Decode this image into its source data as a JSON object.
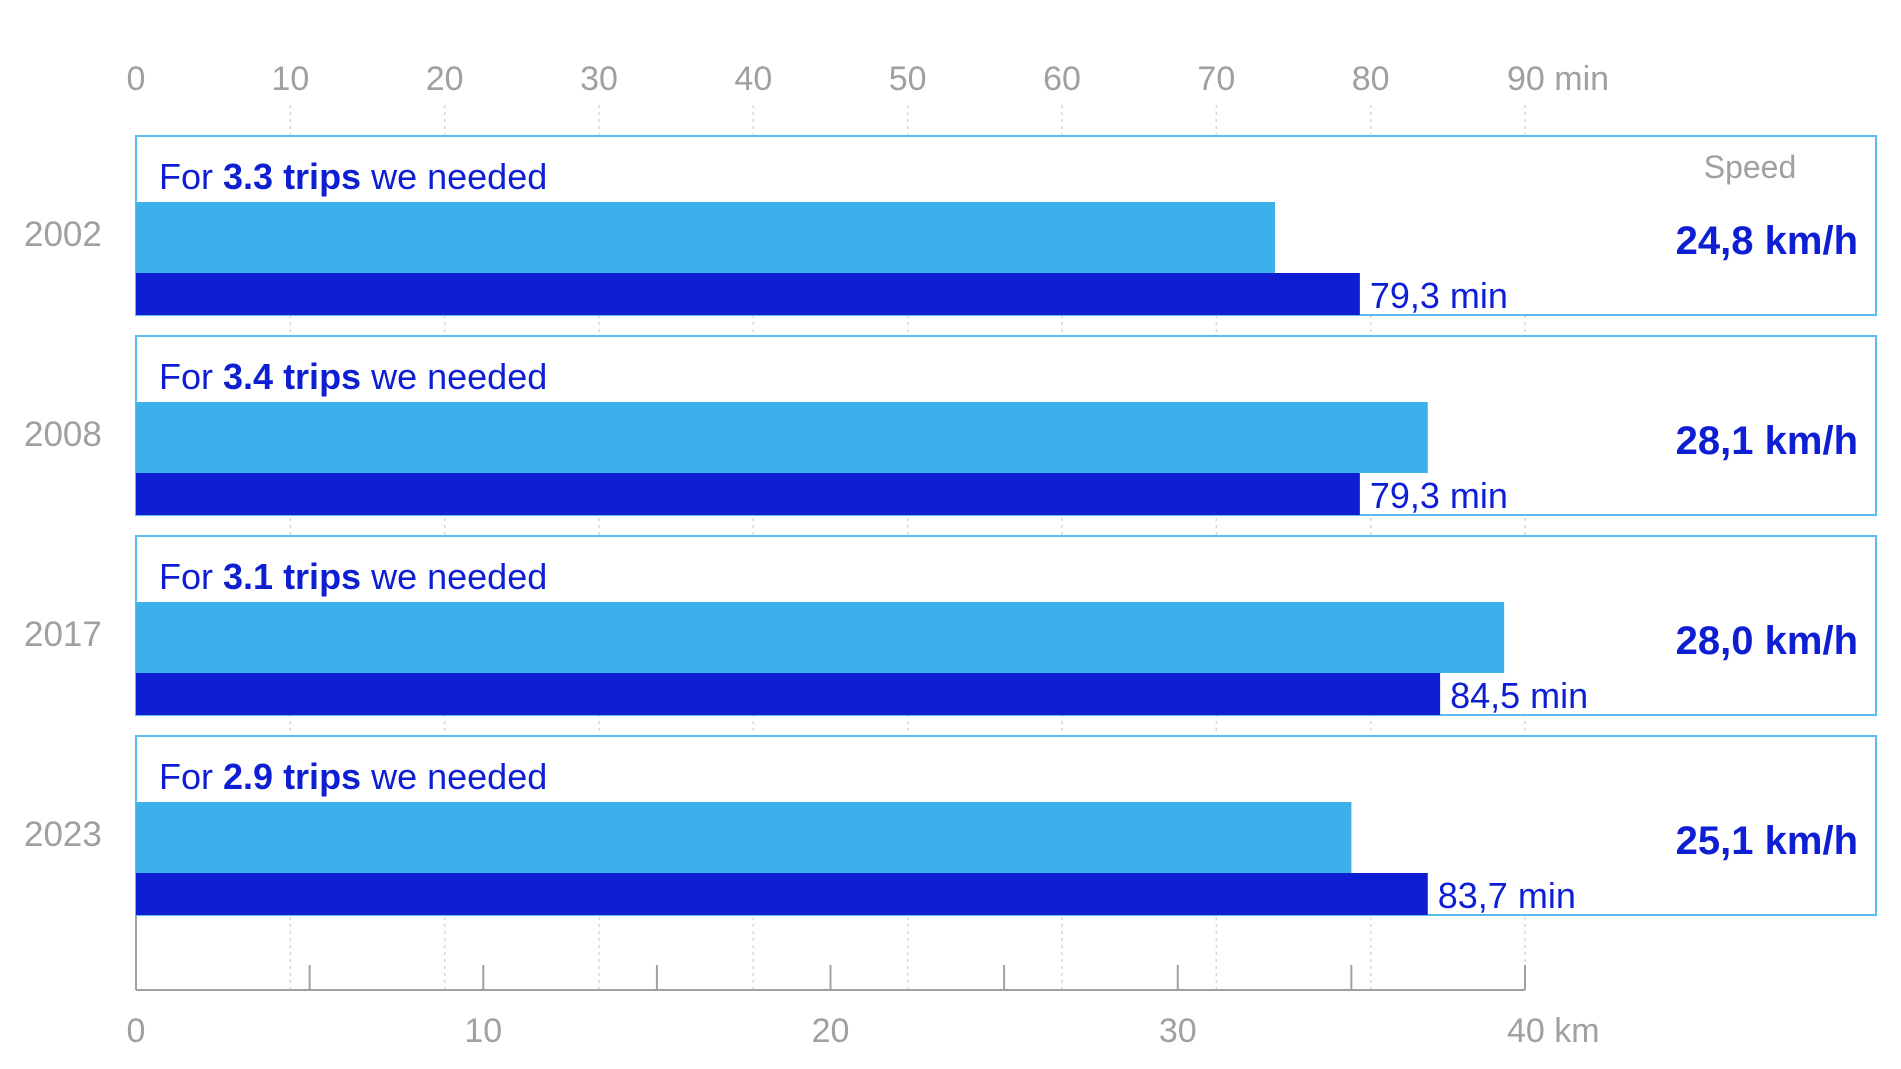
{
  "chart_data": {
    "type": "bar",
    "orientation": "horizontal",
    "categories": [
      "2002",
      "2008",
      "2017",
      "2023"
    ],
    "lead_text": {
      "prefix": "For ",
      "suffix": " we needed"
    },
    "trips": [
      "3.3 trips",
      "3.4 trips",
      "3.1 trips",
      "2.9 trips"
    ],
    "series": [
      {
        "axis": "km",
        "color": "#3db0ec",
        "values": [
          32.8,
          37.2,
          39.4,
          35.0
        ]
      },
      {
        "axis": "min",
        "color": "#0d1ed3",
        "values": [
          79.3,
          79.3,
          84.5,
          83.7
        ],
        "labels": [
          "79,3 min",
          "79,3 min",
          "84,5 min",
          "83,7 min"
        ]
      }
    ],
    "speed_header": "Speed",
    "speed": [
      "24,8 km/h",
      "28,1 km/h",
      "28,0 km/h",
      "25,1 km/h"
    ],
    "top_axis": {
      "range": [
        0,
        90
      ],
      "ticks": [
        "0",
        "10",
        "20",
        "30",
        "40",
        "50",
        "60",
        "70",
        "80",
        "90 min"
      ]
    },
    "bottom_axis": {
      "range": [
        0,
        40
      ],
      "ticks": [
        "0",
        "10",
        "20",
        "30",
        "40 km"
      ]
    },
    "grid": true,
    "colors": {
      "box_border": "#5bbcef",
      "axis": "#a0a0a0",
      "text_accent": "#0d1ed3"
    }
  }
}
